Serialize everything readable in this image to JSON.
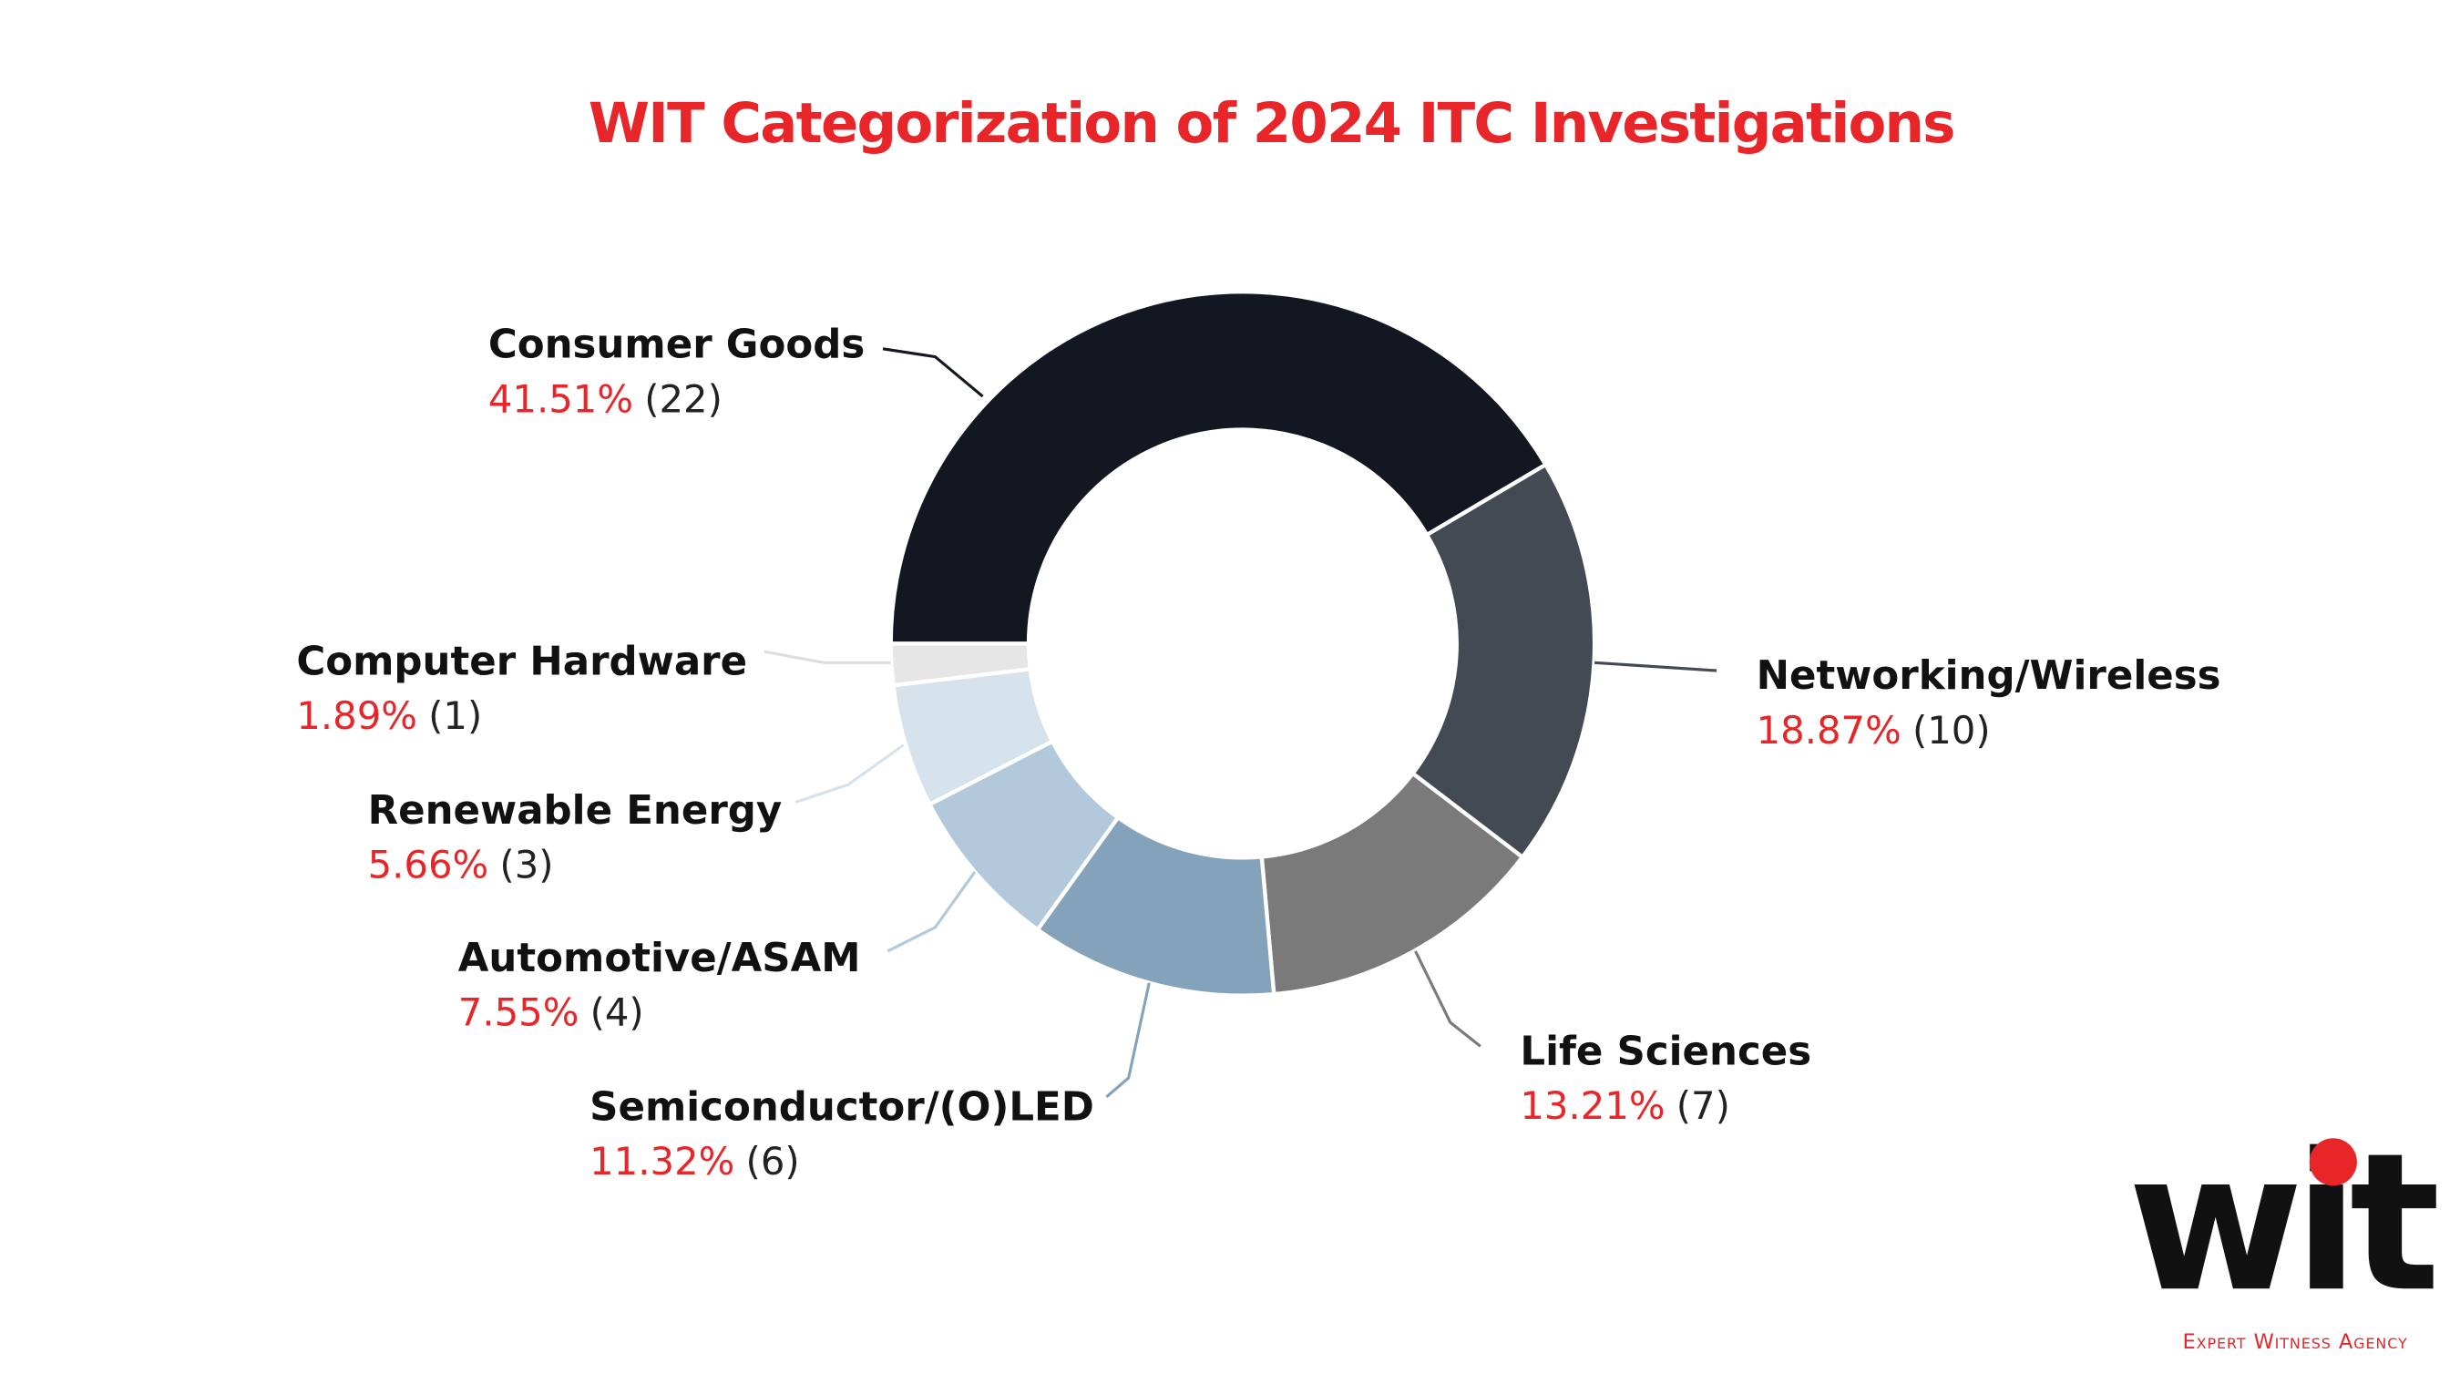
{
  "chart_data": {
    "type": "donut",
    "title": "WIT Categorization of 2024 ITC Investigations",
    "categories": [
      "Consumer Goods",
      "Networking/Wireless",
      "Life Sciences",
      "Semiconductor/(O)LED",
      "Automotive/ASAM",
      "Renewable Energy",
      "Computer Hardware"
    ],
    "values": [
      41.51,
      18.87,
      13.21,
      11.32,
      7.55,
      5.66,
      1.89
    ],
    "value_labels": [
      "41.51%",
      "18.87%",
      "13.21%",
      "11.32%",
      "7.55%",
      "5.66%",
      "1.89%"
    ],
    "counts": [
      22,
      10,
      7,
      6,
      4,
      3,
      1
    ],
    "count_labels": [
      "(22)",
      "(10)",
      "(7)",
      "(6)",
      "(4)",
      "(3)",
      "(1)"
    ],
    "colors": [
      "#131722",
      "#434a54",
      "#7a7a7a",
      "#84a3ba",
      "#b2c9db",
      "#d6e2ec",
      "#e6e6e6"
    ]
  },
  "logo": {
    "text": "wit",
    "tagline": "Expert Witness Agency"
  }
}
